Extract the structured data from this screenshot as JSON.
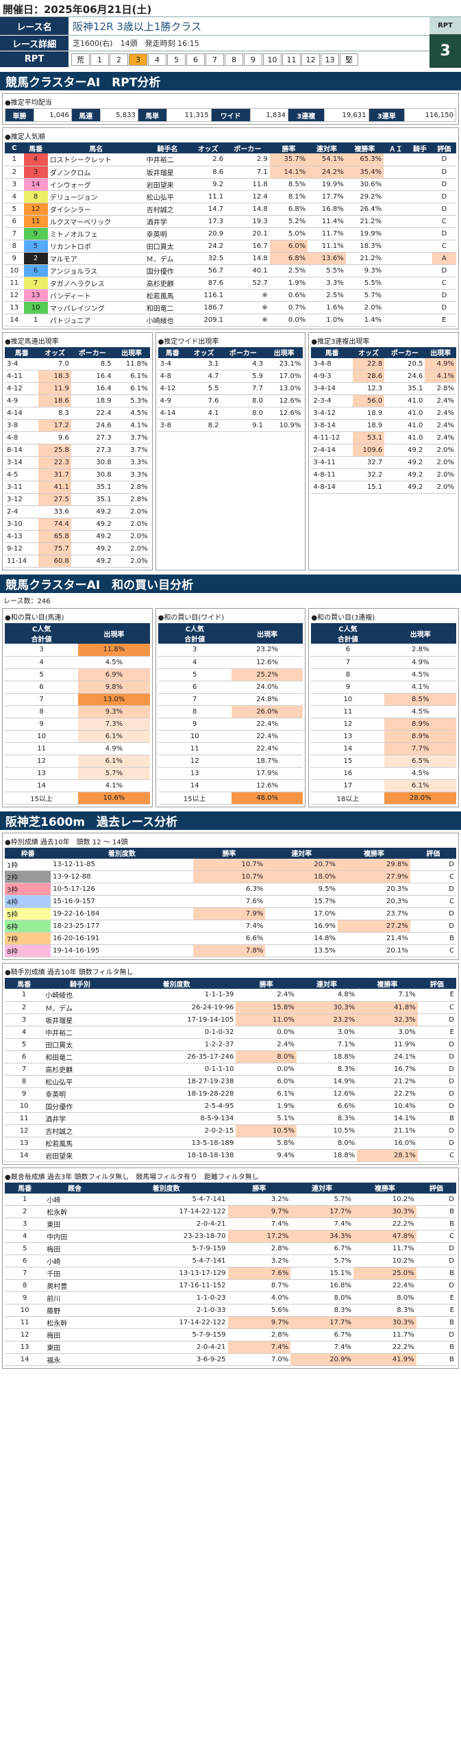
{
  "header": {
    "date": "開催日：2025年06月21日(土)"
  },
  "race": {
    "name_label": "レース名",
    "name": "阪神12R 3歳以上1勝クラス",
    "detail_label": "レース詳細",
    "detail": "芝1600(右)　14頭　発走時刻 16:15",
    "rpt_label": "RPT",
    "rpt_cells": [
      "荒",
      "1",
      "2",
      "3",
      "4",
      "5",
      "6",
      "7",
      "8",
      "9",
      "10",
      "11",
      "12",
      "13",
      "堅"
    ],
    "rpt_selected": "3",
    "rpt_badge": "RPT",
    "rpt_value": "3"
  },
  "sec1": {
    "title": "競馬クラスターAI　RPT分析"
  },
  "payout": {
    "title": "●推定平均配当",
    "items": [
      [
        "単勝",
        "1,046"
      ],
      [
        "馬連",
        "5,833"
      ],
      [
        "馬単",
        "11,315"
      ],
      [
        "ワイド",
        "1,834"
      ],
      [
        "3連複",
        "19,631"
      ],
      [
        "3連単",
        "116,150"
      ]
    ]
  },
  "pop": {
    "title": "●推定人気順",
    "headers": [
      "C",
      "馬番",
      "馬名",
      "騎手名",
      "オッズ",
      "ポーカー",
      "勝率",
      "連対率",
      "複勝率",
      "ＡＩ",
      "騎手",
      "評価"
    ],
    "rows": [
      [
        "1",
        "4",
        "ロストシークレット",
        "中井裕二",
        "2.6",
        "2.9",
        "35.7%",
        "54.1%",
        "65.3%",
        "",
        "",
        "D"
      ],
      [
        "2",
        "3",
        "ダノンクロム",
        "坂井瑠星",
        "8.6",
        "7.1",
        "14.1%",
        "24.2%",
        "35.4%",
        "",
        "",
        "D"
      ],
      [
        "3",
        "14",
        "インウォーグ",
        "岩田望来",
        "9.2",
        "11.8",
        "8.5%",
        "19.9%",
        "30.6%",
        "",
        "",
        "D"
      ],
      [
        "4",
        "8",
        "デリュージョン",
        "松山弘平",
        "11.1",
        "12.4",
        "8.1%",
        "17.7%",
        "29.2%",
        "",
        "",
        "D"
      ],
      [
        "5",
        "12",
        "ダイシンラー",
        "吉村誠之",
        "14.7",
        "14.8",
        "6.8%",
        "16.8%",
        "26.4%",
        "",
        "",
        "D"
      ],
      [
        "6",
        "11",
        "ルクスマーベリック",
        "酒井学",
        "17.3",
        "19.3",
        "5.2%",
        "11.4%",
        "21.2%",
        "",
        "",
        "C"
      ],
      [
        "7",
        "9",
        "ミトノオルフェ",
        "幸英明",
        "20.9",
        "20.1",
        "5.0%",
        "11.7%",
        "19.9%",
        "",
        "",
        "D"
      ],
      [
        "8",
        "5",
        "リカントロポ",
        "田口貫太",
        "24.2",
        "16.7",
        "6.0%",
        "11.1%",
        "18.3%",
        "",
        "",
        "C"
      ],
      [
        "9",
        "2",
        "マルモア",
        "Ｍ．デム",
        "32.5",
        "14.8",
        "6.8%",
        "13.6%",
        "21.2%",
        "",
        "",
        "A"
      ],
      [
        "10",
        "6",
        "アンジョルラス",
        "国分優作",
        "56.7",
        "40.1",
        "2.5%",
        "5.5%",
        "9.3%",
        "",
        "",
        "D"
      ],
      [
        "11",
        "7",
        "タガノヘラクレス",
        "高杉吏麒",
        "87.6",
        "52.7",
        "1.9%",
        "3.3%",
        "5.5%",
        "",
        "",
        "C"
      ],
      [
        "12",
        "13",
        "バンディート",
        "松若風馬",
        "116.1",
        "※",
        "0.6%",
        "2.5%",
        "5.7%",
        "",
        "",
        "D"
      ],
      [
        "13",
        "10",
        "マッパレイジング",
        "和田竜二",
        "186.7",
        "※",
        "0.7%",
        "1.6%",
        "2.0%",
        "",
        "",
        "D"
      ],
      [
        "14",
        "1",
        "パトジュニア",
        "小崎綾也",
        "209.1",
        "※",
        "0.0%",
        "1.0%",
        "1.4%",
        "",
        "",
        "E"
      ]
    ]
  },
  "umaren": {
    "title": "●推定馬連出現率",
    "headers": [
      "馬番",
      "オッズ",
      "ポーカー",
      "出現率"
    ],
    "rows": [
      [
        "3-4",
        "7.0",
        "8.5",
        "11.8%"
      ],
      [
        "4-11",
        "18.3",
        "16.4",
        "6.1%"
      ],
      [
        "4-12",
        "11.9",
        "16.4",
        "6.1%"
      ],
      [
        "4-9",
        "18.6",
        "18.9",
        "5.3%"
      ],
      [
        "4-14",
        "8.3",
        "22.4",
        "4.5%"
      ],
      [
        "3-8",
        "17.2",
        "24.6",
        "4.1%"
      ],
      [
        "4-8",
        "9.6",
        "27.3",
        "3.7%"
      ],
      [
        "8-14",
        "25.8",
        "27.3",
        "3.7%"
      ],
      [
        "3-14",
        "22.3",
        "30.8",
        "3.3%"
      ],
      [
        "4-5",
        "31.7",
        "30.8",
        "3.3%"
      ],
      [
        "3-11",
        "41.1",
        "35.1",
        "2.8%"
      ],
      [
        "3-12",
        "27.5",
        "35.1",
        "2.8%"
      ],
      [
        "2-4",
        "33.6",
        "49.2",
        "2.0%"
      ],
      [
        "3-10",
        "74.4",
        "49.2",
        "2.0%"
      ],
      [
        "4-13",
        "65.8",
        "49.2",
        "2.0%"
      ],
      [
        "9-12",
        "75.7",
        "49.2",
        "2.0%"
      ],
      [
        "11-14",
        "60.8",
        "49.2",
        "2.0%"
      ]
    ]
  },
  "wide": {
    "title": "●推定ワイド出現率",
    "headers": [
      "馬番",
      "オッズ",
      "ポーカー",
      "出現率"
    ],
    "rows": [
      [
        "3-4",
        "3.1",
        "4.3",
        "23.1%"
      ],
      [
        "4-8",
        "4.7",
        "5.9",
        "17.0%"
      ],
      [
        "4-12",
        "5.5",
        "7.7",
        "13.0%"
      ],
      [
        "4-9",
        "7.6",
        "8.0",
        "12.6%"
      ],
      [
        "4-14",
        "4.1",
        "8.0",
        "12.6%"
      ],
      [
        "3-8",
        "8.2",
        "9.1",
        "10.9%"
      ]
    ]
  },
  "sanren": {
    "title": "●推定3連複出現率",
    "headers": [
      "馬番",
      "オッズ",
      "ポーカー",
      "出現率"
    ],
    "rows": [
      [
        "3-4-8",
        "22.8",
        "20.5",
        "4.9%"
      ],
      [
        "4-9-3",
        "28.6",
        "24.6",
        "4.1%"
      ],
      [
        "3-4-14",
        "12.3",
        "35.1",
        "2.8%"
      ],
      [
        "2-3-4",
        "56.0",
        "41.0",
        "2.4%"
      ],
      [
        "3-4-12",
        "18.9",
        "41.0",
        "2.4%"
      ],
      [
        "3-8-14",
        "18.9",
        "41.0",
        "2.4%"
      ],
      [
        "4-11-12",
        "53.1",
        "41.0",
        "2.4%"
      ],
      [
        "2-4-14",
        "109.6",
        "49.2",
        "2.0%"
      ],
      [
        "3-4-11",
        "32.7",
        "49.2",
        "2.0%"
      ],
      [
        "4-8-11",
        "32.2",
        "49.2",
        "2.0%"
      ],
      [
        "4-8-14",
        "15.1",
        "49.2",
        "2.0%"
      ]
    ]
  },
  "sec2": {
    "title": "競馬クラスターAI　和の買い目分析",
    "count": "レース数：246"
  },
  "wa_umaren": {
    "title": "●和の買い目(馬連)",
    "h1": "C人気\n合計値",
    "h2": "出現率",
    "rows": [
      [
        "3",
        "11.8%"
      ],
      [
        "4",
        "4.5%"
      ],
      [
        "5",
        "6.9%"
      ],
      [
        "6",
        "9.8%"
      ],
      [
        "7",
        "13.0%"
      ],
      [
        "8",
        "9.3%"
      ],
      [
        "9",
        "7.3%"
      ],
      [
        "10",
        "6.1%"
      ],
      [
        "11",
        "4.9%"
      ],
      [
        "12",
        "6.1%"
      ],
      [
        "13",
        "5.7%"
      ],
      [
        "14",
        "4.1%"
      ],
      [
        "15以上",
        "10.6%"
      ]
    ]
  },
  "wa_wide": {
    "title": "●和の買い目(ワイド)",
    "h1": "C人気\n合計値",
    "h2": "出現率",
    "rows": [
      [
        "3",
        "23.2%"
      ],
      [
        "4",
        "12.6%"
      ],
      [
        "5",
        "25.2%"
      ],
      [
        "6",
        "24.0%"
      ],
      [
        "7",
        "24.8%"
      ],
      [
        "8",
        "26.0%"
      ],
      [
        "9",
        "22.4%"
      ],
      [
        "10",
        "22.4%"
      ],
      [
        "11",
        "22.4%"
      ],
      [
        "12",
        "18.7%"
      ],
      [
        "13",
        "17.9%"
      ],
      [
        "14",
        "12.6%"
      ],
      [
        "15以上",
        "48.0%"
      ]
    ]
  },
  "wa_3ren": {
    "title": "●和の買い目(3連複)",
    "h1": "C人気\n合計値",
    "h2": "出現率",
    "rows": [
      [
        "6",
        "2.8%"
      ],
      [
        "7",
        "4.9%"
      ],
      [
        "8",
        "4.5%"
      ],
      [
        "9",
        "4.1%"
      ],
      [
        "10",
        "8.5%"
      ],
      [
        "11",
        "4.5%"
      ],
      [
        "12",
        "8.9%"
      ],
      [
        "13",
        "8.9%"
      ],
      [
        "14",
        "7.7%"
      ],
      [
        "15",
        "6.5%"
      ],
      [
        "16",
        "4.5%"
      ],
      [
        "17",
        "6.1%"
      ],
      [
        "18以上",
        "28.0%"
      ]
    ]
  },
  "sec3": {
    "title": "阪神芝1600m　過去レース分析"
  },
  "waku": {
    "title": "●枠別成績 過去10年　頭数 12 ～ 14頭",
    "headers": [
      "枠番",
      "着別度数",
      "勝率",
      "連対率",
      "複勝率",
      "評価"
    ],
    "rows": [
      [
        "1枠",
        "13-12-11-85",
        "10.7%",
        "20.7%",
        "29.8%",
        "D"
      ],
      [
        "2枠",
        "13-9-12-88",
        "10.7%",
        "18.0%",
        "27.9%",
        "C"
      ],
      [
        "3枠",
        "10-5-17-126",
        "6.3%",
        "9.5%",
        "20.3%",
        "D"
      ],
      [
        "4枠",
        "15-16-9-157",
        "7.6%",
        "15.7%",
        "20.3%",
        "C"
      ],
      [
        "5枠",
        "19-22-16-184",
        "7.9%",
        "17.0%",
        "23.7%",
        "D"
      ],
      [
        "6枠",
        "18-23-25-177",
        "7.4%",
        "16.9%",
        "27.2%",
        "D"
      ],
      [
        "7枠",
        "16-20-16-191",
        "6.6%",
        "14.8%",
        "21.4%",
        "B"
      ],
      [
        "8枠",
        "19-14-16-195",
        "7.8%",
        "13.5%",
        "20.1%",
        "C"
      ]
    ]
  },
  "jockey": {
    "title": "●騎手別成績 過去10年 頭数フィルタ無し",
    "headers": [
      "馬番",
      "騎手別",
      "着別度数",
      "勝率",
      "連対率",
      "複勝率",
      "評価"
    ],
    "rows": [
      [
        "1",
        "小崎綾也",
        "1-1-1-39",
        "2.4%",
        "4.8%",
        "7.1%",
        "E"
      ],
      [
        "2",
        "Ｍ．デム",
        "26-24-19-96",
        "15.8%",
        "30.3%",
        "41.8%",
        "C"
      ],
      [
        "3",
        "坂井瑠星",
        "17-19-14-105",
        "11.0%",
        "23.2%",
        "32.3%",
        "D"
      ],
      [
        "4",
        "中井裕二",
        "0-1-0-32",
        "0.0%",
        "3.0%",
        "3.0%",
        "E"
      ],
      [
        "5",
        "田口貫太",
        "1-2-2-37",
        "2.4%",
        "7.1%",
        "11.9%",
        "D"
      ],
      [
        "6",
        "和田竜二",
        "26-35-17-246",
        "8.0%",
        "18.8%",
        "24.1%",
        "D"
      ],
      [
        "7",
        "高杉吏麒",
        "0-1-1-10",
        "0.0%",
        "8.3%",
        "16.7%",
        "D"
      ],
      [
        "8",
        "松山弘平",
        "18-27-19-238",
        "6.0%",
        "14.9%",
        "21.2%",
        "D"
      ],
      [
        "9",
        "幸英明",
        "18-19-28-228",
        "6.1%",
        "12.6%",
        "22.2%",
        "D"
      ],
      [
        "10",
        "国分優作",
        "2-5-4-95",
        "1.9%",
        "6.6%",
        "10.4%",
        "D"
      ],
      [
        "11",
        "酒井学",
        "8-5-9-134",
        "5.1%",
        "8.3%",
        "14.1%",
        "B"
      ],
      [
        "12",
        "吉村誠之",
        "2-0-2-15",
        "10.5%",
        "10.5%",
        "21.1%",
        "D"
      ],
      [
        "13",
        "松若風馬",
        "13-5-18-189",
        "5.8%",
        "8.0%",
        "16.0%",
        "D"
      ],
      [
        "14",
        "岩田望来",
        "18-18-18-138",
        "9.4%",
        "18.8%",
        "28.1%",
        "C"
      ]
    ]
  },
  "trainer": {
    "title": "●厩舎毎成績 過去3年 頭数フィルタ無し　競馬場フィルタ有り　距離フィルタ無し",
    "headers": [
      "馬番",
      "厩舎",
      "着別度数",
      "勝率",
      "連対率",
      "複勝率",
      "評価"
    ],
    "rows": [
      [
        "1",
        "小崎",
        "5-4-7-141",
        "3.2%",
        "5.7%",
        "10.2%",
        "D"
      ],
      [
        "2",
        "松永幹",
        "17-14-22-122",
        "9.7%",
        "17.7%",
        "30.3%",
        "B"
      ],
      [
        "3",
        "東田",
        "2-0-4-21",
        "7.4%",
        "7.4%",
        "22.2%",
        "B"
      ],
      [
        "4",
        "中内田",
        "23-23-18-70",
        "17.2%",
        "34.3%",
        "47.8%",
        "C"
      ],
      [
        "5",
        "梅田",
        "5-7-9-159",
        "2.8%",
        "6.7%",
        "11.7%",
        "D"
      ],
      [
        "6",
        "小崎",
        "5-4-7-141",
        "3.2%",
        "5.7%",
        "10.2%",
        "D"
      ],
      [
        "7",
        "千田",
        "13-13-17-129",
        "7.6%",
        "15.1%",
        "25.0%",
        "B"
      ],
      [
        "8",
        "奥村豊",
        "17-16-11-152",
        "8.7%",
        "16.8%",
        "22.4%",
        "D"
      ],
      [
        "9",
        "前川",
        "1-1-0-23",
        "4.0%",
        "8.0%",
        "8.0%",
        "E"
      ],
      [
        "10",
        "藤野",
        "2-1-0-33",
        "5.6%",
        "8.3%",
        "8.3%",
        "E"
      ],
      [
        "11",
        "松永幹",
        "17-14-22-122",
        "9.7%",
        "17.7%",
        "30.3%",
        "B"
      ],
      [
        "12",
        "梅田",
        "5-7-9-159",
        "2.8%",
        "6.7%",
        "11.7%",
        "D"
      ],
      [
        "13",
        "東田",
        "2-0-4-21",
        "7.4%",
        "7.4%",
        "22.2%",
        "B"
      ],
      [
        "14",
        "福永",
        "3-6-9-25",
        "7.0%",
        "20.9%",
        "41.9%",
        "B"
      ]
    ]
  }
}
